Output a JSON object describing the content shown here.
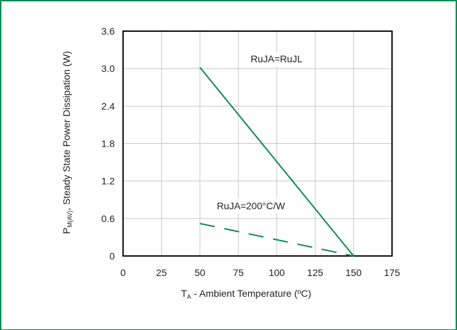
{
  "colors": {
    "frame": "#0f8a54",
    "series": "#0f8a54",
    "grid": "#c8c8c8",
    "axis": "#111111"
  },
  "chart_data": {
    "type": "line",
    "xlabel_main": "T",
    "xlabel_sub": "A",
    "xlabel_rest": " - Ambient Temperature (ºC)",
    "ylabel_main": "P",
    "ylabel_sub": "M(AV)",
    "ylabel_rest": ", Steady State Power Dissipation (W)",
    "xlim": [
      0,
      175
    ],
    "ylim": [
      0,
      3.6
    ],
    "x_ticks": [
      "0",
      "25",
      "50",
      "75",
      "100",
      "125",
      "150",
      "175"
    ],
    "x_tick_values": [
      0,
      25,
      50,
      75,
      100,
      125,
      150,
      175
    ],
    "y_ticks": [
      "0",
      "0.6",
      "1.2",
      "1.8",
      "2.4",
      "3.0",
      "3.6"
    ],
    "y_tick_values": [
      0,
      0.6,
      1.2,
      1.8,
      2.4,
      3.0,
      3.6
    ],
    "grid": true,
    "series": [
      {
        "name": "RuJA=RuJL",
        "style": "solid",
        "x": [
          50,
          150
        ],
        "y": [
          3.02,
          0
        ]
      },
      {
        "name": "RuJA=200°C/W",
        "style": "dashed",
        "x": [
          50,
          150
        ],
        "y": [
          0.52,
          0
        ]
      }
    ],
    "annotations": [
      {
        "text": "RuJA=RuJL",
        "x": 83,
        "y": 3.1
      },
      {
        "text": "RuJA=200°C/W",
        "x": 61,
        "y": 0.75
      }
    ]
  }
}
